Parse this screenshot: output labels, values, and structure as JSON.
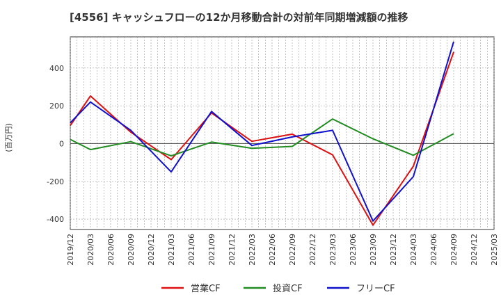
{
  "chart_data": {
    "type": "line",
    "title": "[4556]  キャッシュフローの12か月移動合計の対前年同期増減額の推移",
    "ylabel": "(百万円)",
    "xlabel": "",
    "ylim": [
      -455,
      565
    ],
    "yticks": [
      -400,
      -200,
      0,
      200,
      400
    ],
    "ytick_labels": [
      "-400",
      "-200",
      "0",
      "200",
      "400"
    ],
    "x_ticks": [
      "2019/12",
      "2020/03",
      "2020/06",
      "2020/09",
      "2020/12",
      "2021/03",
      "2021/06",
      "2021/09",
      "2021/12",
      "2022/03",
      "2022/06",
      "2022/09",
      "2022/12",
      "2023/03",
      "2023/06",
      "2023/09",
      "2023/12",
      "2024/03",
      "2024/06",
      "2024/09",
      "2024/12",
      "2025/03"
    ],
    "grid": true,
    "legend_position": "bottom",
    "series": [
      {
        "name": "営業CF",
        "color": "#dd1111",
        "x": [
          "2019/12",
          "2020/03",
          "2020/09",
          "2021/03",
          "2021/09",
          "2022/03",
          "2022/09",
          "2023/03",
          "2023/09",
          "2024/03",
          "2024/09"
        ],
        "values": [
          95,
          252,
          60,
          -85,
          162,
          12,
          50,
          -60,
          -432,
          -120,
          485
        ]
      },
      {
        "name": "投資CF",
        "color": "#228b22",
        "x": [
          "2019/12",
          "2020/03",
          "2020/09",
          "2021/03",
          "2021/09",
          "2022/03",
          "2022/09",
          "2023/03",
          "2023/09",
          "2024/03",
          "2024/09"
        ],
        "values": [
          22,
          -32,
          10,
          -65,
          8,
          -25,
          -15,
          130,
          25,
          -62,
          52
        ]
      },
      {
        "name": "フリーCF",
        "color": "#1111cc",
        "x": [
          "2019/12",
          "2020/03",
          "2020/09",
          "2021/03",
          "2021/09",
          "2022/03",
          "2022/09",
          "2023/03",
          "2023/09",
          "2024/03",
          "2024/09"
        ],
        "values": [
          110,
          220,
          70,
          -150,
          170,
          -10,
          35,
          70,
          -410,
          -175,
          540
        ]
      }
    ]
  }
}
